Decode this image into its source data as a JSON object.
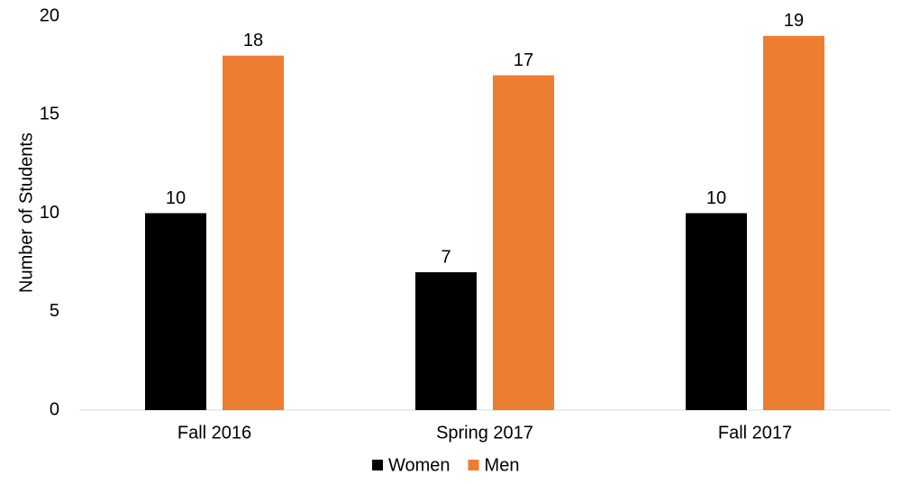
{
  "chart_data": {
    "type": "bar",
    "y_label": "Number of Students",
    "categories": [
      "Fall 2016",
      "Spring 2017",
      "Fall 2017"
    ],
    "series": [
      {
        "name": "Women",
        "color": "#000000",
        "values": [
          10,
          7,
          10
        ]
      },
      {
        "name": "Men",
        "color": "#ED7D31",
        "values": [
          18,
          17,
          19
        ]
      }
    ],
    "ylim": [
      0,
      20
    ],
    "yticks": [
      0,
      5,
      10,
      15,
      20
    ],
    "grid": false,
    "legend": "bottom"
  }
}
